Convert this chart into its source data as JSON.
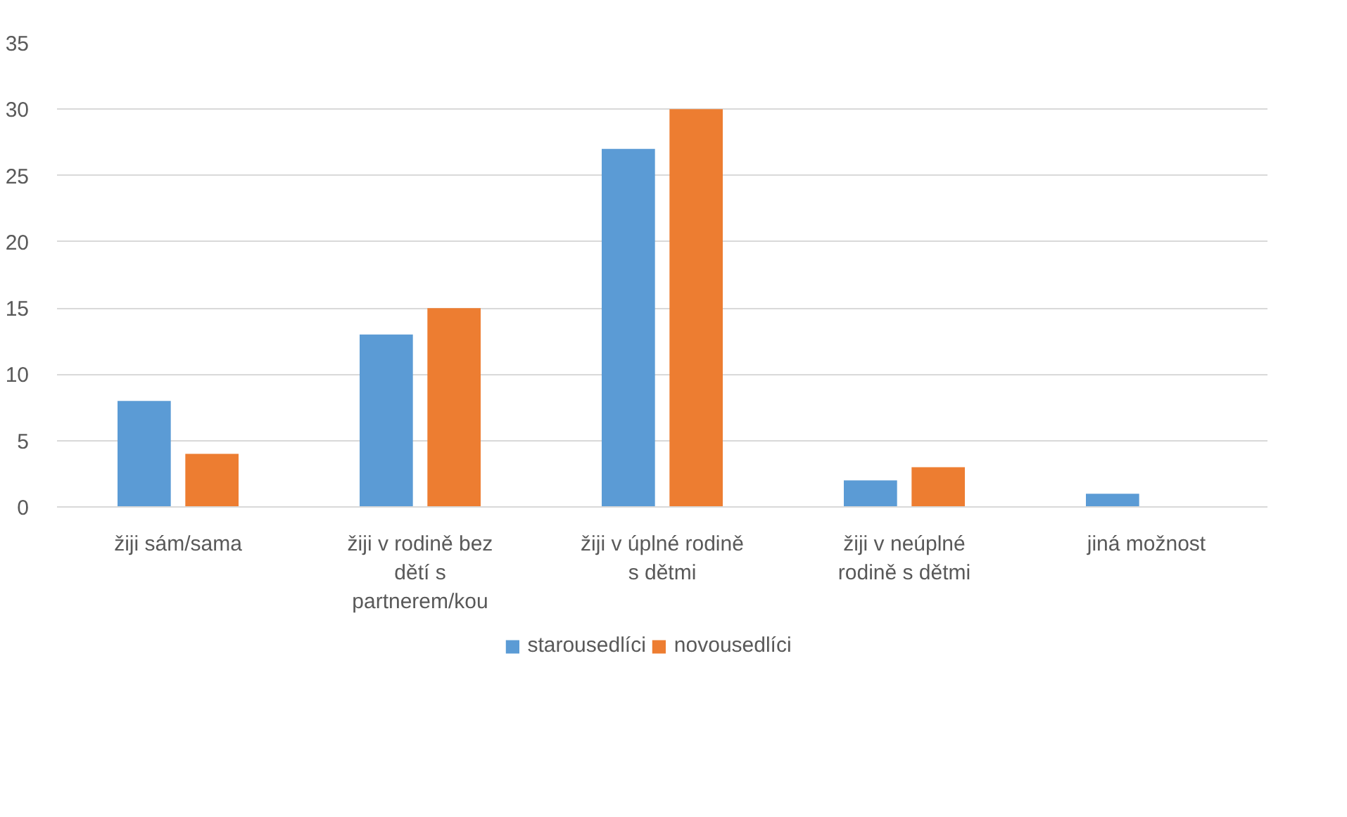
{
  "chart_data": {
    "type": "bar",
    "categories": [
      "žiji sám/sama",
      "žiji v rodině bez dětí s partnerem/kou",
      "žiji v úplné rodině s dětmi",
      "žiji v neúplné rodině s dětmi",
      "jiná možnost"
    ],
    "series": [
      {
        "name": "starousedlíci",
        "color": "#5b9bd5",
        "values": [
          8,
          13,
          27,
          2,
          1
        ]
      },
      {
        "name": "novousedlíci",
        "color": "#ed7d31",
        "values": [
          4,
          15,
          30,
          3,
          0
        ]
      }
    ],
    "ylim": [
      0,
      35
    ],
    "yticks": [
      0,
      5,
      10,
      15,
      20,
      25,
      30,
      35
    ],
    "grid": "y",
    "legend": "bottom"
  }
}
